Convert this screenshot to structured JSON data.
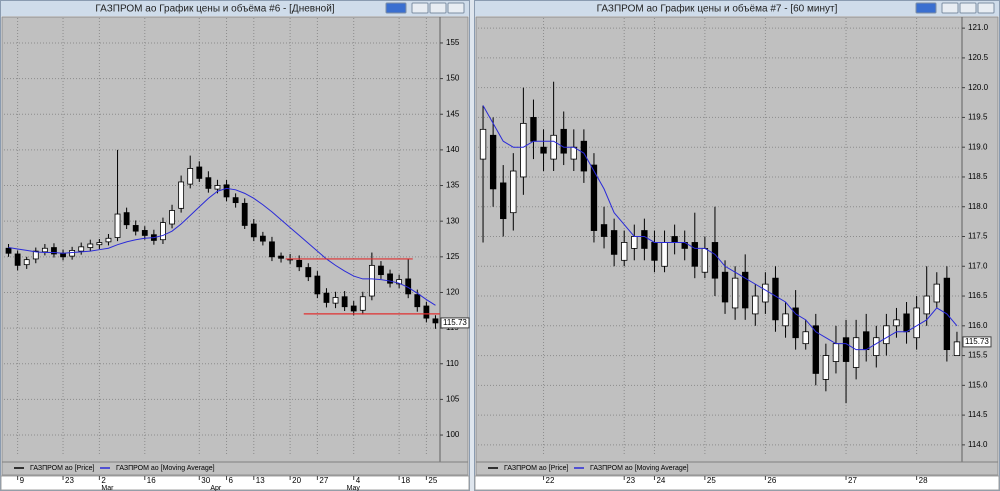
{
  "chart_data": [
    {
      "type": "candlestick",
      "title": "ГАЗПРОМ ао График цены и объёма #6 - [Дневной]",
      "categories": [
        null,
        "9",
        null,
        null,
        null,
        null,
        "23",
        null,
        null,
        null,
        "2",
        null,
        null,
        null,
        null,
        "16",
        null,
        null,
        null,
        null,
        null,
        "30",
        null,
        null,
        "6",
        null,
        null,
        "13",
        null,
        null,
        null,
        "20",
        null,
        null,
        "27",
        null,
        null,
        null,
        "4",
        null,
        null,
        null,
        null,
        "18",
        null,
        null,
        "25",
        null
      ],
      "months": [
        null,
        null,
        null,
        null,
        null,
        null,
        null,
        null,
        null,
        null,
        "Mar",
        null,
        null,
        null,
        null,
        null,
        null,
        null,
        null,
        null,
        null,
        null,
        "Apr",
        null,
        null,
        null,
        null,
        null,
        null,
        null,
        null,
        null,
        null,
        null,
        null,
        null,
        null,
        "May",
        null,
        null,
        null,
        null,
        null,
        null,
        null,
        null,
        null,
        null
      ],
      "series": [
        {
          "name": "ГАЗПРОМ ао [Price]",
          "color": "#000000",
          "up_color": "#ffffff",
          "down_color": "#000000",
          "open": [
            126.2,
            125.4,
            123.9,
            124.7,
            125.7,
            126.3,
            125.5,
            125.1,
            125.8,
            126.3,
            126.7,
            127.1,
            127.7,
            131.2,
            129.4,
            128.7,
            128.1,
            127.4,
            129.6,
            131.8,
            135.2,
            137.6,
            136.1,
            134.5,
            135.1,
            133.3,
            132.5,
            129.6,
            127.9,
            127.1,
            125.1,
            124.7,
            124.5,
            123.5,
            122.3,
            119.9,
            118.5,
            119.4,
            118.1,
            117.5,
            119.5,
            123.7,
            122.6,
            121.2,
            121.9,
            119.7,
            118.1,
            116.3
          ],
          "high": [
            126.8,
            125.9,
            125.0,
            126.3,
            126.8,
            126.9,
            126.0,
            126.4,
            127.0,
            127.4,
            127.5,
            128.2,
            140.0,
            131.9,
            130.1,
            129.3,
            128.8,
            130.5,
            132.3,
            136.4,
            139.2,
            138.4,
            137.0,
            135.8,
            135.8,
            133.9,
            133.2,
            130.3,
            128.5,
            127.8,
            125.6,
            125.4,
            125.2,
            124.1,
            123.0,
            120.6,
            120.1,
            120.2,
            118.8,
            120.1,
            125.6,
            124.4,
            123.2,
            122.5,
            124.7,
            120.4,
            118.7,
            116.8
          ],
          "low": [
            125.0,
            123.1,
            123.3,
            124.1,
            125.2,
            124.9,
            124.5,
            124.6,
            125.3,
            125.8,
            126.1,
            126.6,
            127.2,
            128.9,
            128.0,
            127.4,
            126.7,
            126.8,
            129.0,
            131.2,
            134.6,
            135.5,
            134.0,
            133.9,
            132.8,
            131.9,
            128.9,
            127.2,
            126.6,
            124.4,
            124.2,
            124.0,
            123.0,
            121.6,
            119.2,
            117.9,
            117.8,
            117.4,
            116.8,
            116.9,
            118.9,
            121.9,
            120.7,
            120.6,
            119.2,
            117.3,
            115.8,
            114.9
          ],
          "close": [
            125.5,
            123.8,
            124.6,
            125.8,
            126.2,
            125.4,
            125.0,
            125.9,
            126.4,
            126.8,
            127.0,
            127.6,
            131.0,
            129.5,
            128.6,
            128.0,
            127.3,
            129.8,
            131.5,
            135.5,
            137.4,
            136.0,
            134.6,
            135.0,
            133.4,
            132.6,
            129.4,
            127.8,
            127.2,
            125.0,
            124.8,
            124.6,
            123.6,
            122.2,
            119.8,
            118.6,
            119.3,
            118.0,
            117.4,
            119.4,
            123.8,
            122.5,
            121.3,
            121.8,
            119.8,
            118.0,
            116.4,
            115.73
          ]
        },
        {
          "name": "ГАЗПРОМ ао [Moving Average]",
          "color": "#2a2ad8",
          "values": [
            126.3,
            126.1,
            125.9,
            125.7,
            125.6,
            125.6,
            125.5,
            125.6,
            125.7,
            125.8,
            126.0,
            126.2,
            126.7,
            127.1,
            127.4,
            127.6,
            127.7,
            128.0,
            128.6,
            129.6,
            130.8,
            132.0,
            133.2,
            134.2,
            134.6,
            134.4,
            133.9,
            133.2,
            132.3,
            131.3,
            130.2,
            129.1,
            128.0,
            126.9,
            125.8,
            124.7,
            123.8,
            123.0,
            122.3,
            121.9,
            121.9,
            121.8,
            121.6,
            121.3,
            120.7,
            119.9,
            119.0,
            118.2
          ]
        }
      ],
      "levels": [
        {
          "value": 124.7,
          "start": 31,
          "end": 44,
          "color": "#e03030"
        },
        {
          "value": 117.0,
          "start": 33,
          "end": 47,
          "color": "#e03030"
        }
      ],
      "ylim": [
        97.2,
        158.5
      ],
      "yticks": [
        100,
        105,
        110,
        115,
        120,
        125,
        130,
        135,
        140,
        145,
        150,
        155
      ],
      "grid": true
    },
    {
      "type": "candlestick",
      "title": "ГАЗПРОМ ао График цены и объёма #7 - [60 минут]",
      "categories": [
        null,
        null,
        null,
        null,
        null,
        null,
        "22",
        null,
        null,
        null,
        null,
        null,
        null,
        null,
        "23",
        null,
        null,
        "24",
        null,
        null,
        null,
        null,
        "25",
        null,
        null,
        null,
        null,
        null,
        "26",
        null,
        null,
        null,
        null,
        null,
        null,
        null,
        "27",
        null,
        null,
        null,
        null,
        null,
        null,
        "28",
        null,
        null,
        null,
        null
      ],
      "series": [
        {
          "name": "ГАЗПРОМ ао [Price]",
          "color": "#000000",
          "up_color": "#ffffff",
          "down_color": "#000000",
          "open": [
            118.8,
            119.2,
            118.4,
            117.9,
            118.5,
            119.5,
            119.0,
            118.8,
            119.3,
            118.8,
            119.1,
            118.7,
            117.7,
            117.6,
            117.1,
            117.3,
            117.6,
            117.4,
            117.0,
            117.5,
            117.4,
            117.4,
            116.9,
            117.4,
            116.9,
            116.3,
            116.9,
            116.2,
            116.4,
            116.8,
            116.0,
            116.3,
            115.7,
            116.0,
            115.1,
            115.4,
            115.8,
            115.3,
            115.9,
            115.5,
            115.7,
            116.0,
            116.2,
            115.8,
            116.2,
            116.4,
            116.8,
            115.5
          ],
          "high": [
            119.7,
            119.5,
            118.7,
            118.9,
            120.0,
            119.8,
            119.3,
            120.1,
            119.6,
            119.3,
            119.3,
            118.9,
            118.0,
            117.8,
            117.6,
            117.7,
            117.8,
            117.6,
            117.6,
            117.7,
            117.6,
            117.9,
            117.5,
            118.0,
            117.1,
            117.0,
            117.2,
            116.7,
            116.9,
            117.0,
            116.4,
            116.6,
            116.1,
            116.2,
            115.7,
            116.0,
            116.1,
            116.1,
            116.2,
            116.0,
            116.2,
            116.3,
            116.4,
            116.5,
            117.0,
            116.9,
            117.0,
            115.9
          ],
          "low": [
            117.4,
            118.0,
            117.5,
            117.6,
            118.2,
            118.8,
            118.6,
            118.6,
            118.7,
            118.6,
            118.4,
            117.4,
            117.3,
            117.0,
            117.0,
            117.1,
            117.1,
            116.9,
            116.9,
            117.2,
            117.1,
            116.8,
            116.8,
            116.5,
            116.2,
            116.1,
            116.1,
            116.0,
            116.2,
            115.9,
            115.8,
            115.6,
            115.6,
            115.0,
            114.9,
            115.2,
            114.7,
            115.1,
            115.4,
            115.3,
            115.5,
            115.8,
            115.7,
            115.6,
            116.0,
            116.3,
            115.4,
            115.5
          ],
          "close": [
            119.3,
            118.3,
            117.8,
            118.6,
            119.4,
            119.1,
            118.9,
            119.2,
            118.9,
            119.0,
            118.6,
            117.6,
            117.5,
            117.2,
            117.4,
            117.5,
            117.3,
            117.1,
            117.4,
            117.4,
            117.3,
            117.0,
            117.3,
            116.8,
            116.4,
            116.8,
            116.3,
            116.5,
            116.7,
            116.1,
            116.2,
            115.8,
            115.9,
            115.2,
            115.5,
            115.7,
            115.4,
            115.8,
            115.6,
            115.8,
            116.0,
            116.1,
            115.9,
            116.3,
            116.5,
            116.7,
            115.6,
            115.73
          ]
        },
        {
          "name": "ГАЗПРОМ ао [Moving Average]",
          "color": "#2a2ad8",
          "values": [
            119.7,
            119.4,
            119.1,
            119.0,
            119.0,
            119.1,
            119.1,
            119.1,
            119.0,
            119.0,
            118.9,
            118.6,
            118.3,
            117.9,
            117.7,
            117.5,
            117.5,
            117.4,
            117.4,
            117.4,
            117.4,
            117.3,
            117.3,
            117.2,
            117.0,
            116.9,
            116.8,
            116.7,
            116.6,
            116.5,
            116.4,
            116.2,
            116.1,
            115.9,
            115.8,
            115.7,
            115.7,
            115.6,
            115.6,
            115.7,
            115.8,
            115.9,
            115.9,
            116.0,
            116.1,
            116.3,
            116.2,
            116.0
          ]
        }
      ],
      "ylim": [
        113.83,
        121.17
      ],
      "yticks": [
        {
          "value": 114.0,
          "label": "114.0"
        },
        {
          "value": 114.5,
          "label": "114.5"
        },
        {
          "value": 115.0,
          "label": "115.0"
        },
        {
          "value": 115.5,
          "label": "115.5"
        },
        {
          "value": 116.0,
          "label": "116.0"
        },
        {
          "value": 116.5,
          "label": "116.5"
        },
        {
          "value": 117.0,
          "label": "117.0"
        },
        {
          "value": 117.5,
          "label": "117.5"
        },
        {
          "value": 118.0,
          "label": "118.0"
        },
        {
          "value": 118.5,
          "label": "118.5"
        },
        {
          "value": 119.0,
          "label": "119.0"
        },
        {
          "value": 119.5,
          "label": "119.5"
        },
        {
          "value": 120.0,
          "label": "120.0"
        },
        {
          "value": 120.5,
          "label": "120.5"
        },
        {
          "value": 121.0,
          "label": "121.0"
        }
      ],
      "grid": true
    }
  ]
}
